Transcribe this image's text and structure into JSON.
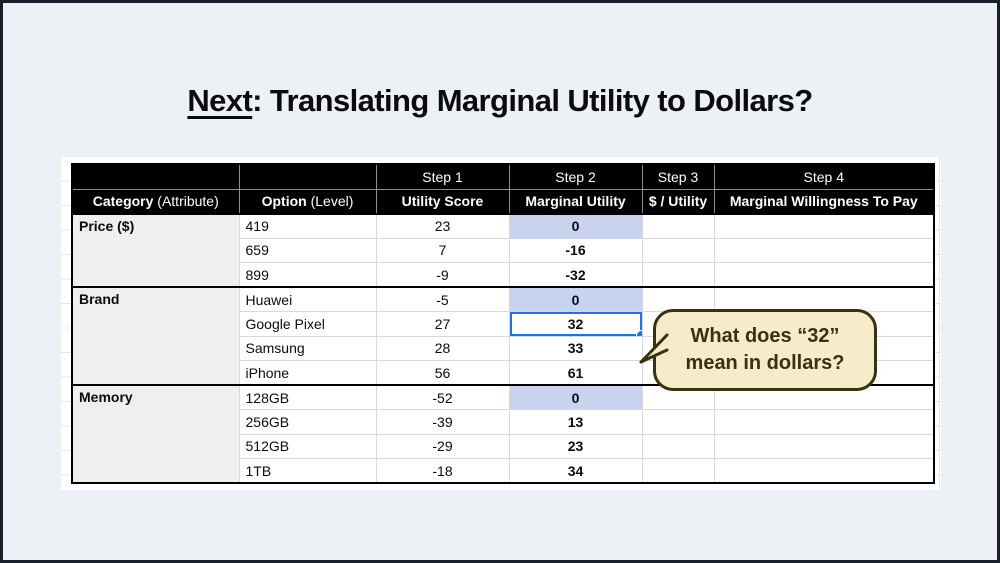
{
  "title": {
    "underlined": "Next",
    "rest": ": Translating Marginal Utility to Dollars?"
  },
  "table": {
    "step_row": [
      "",
      "",
      "Step 1",
      "Step 2",
      "Step 3",
      "Step 4"
    ],
    "header_row": [
      {
        "bold": "Category",
        "normal": " (Attribute)"
      },
      {
        "bold": "Option",
        "normal": " (Level)"
      },
      {
        "bold": "Utility Score",
        "normal": ""
      },
      {
        "bold": "Marginal Utility",
        "normal": ""
      },
      {
        "bold": "$ / Utility",
        "normal": ""
      },
      {
        "bold": "Marginal Willingness To Pay",
        "normal": ""
      }
    ],
    "rows": [
      {
        "category": "Price ($)",
        "span": 3,
        "group_start": true,
        "option": "419",
        "utility_score": "23",
        "marginal_utility": "0",
        "highlight": true
      },
      {
        "option": "659",
        "utility_score": "7",
        "marginal_utility": "-16"
      },
      {
        "option": "899",
        "utility_score": "-9",
        "marginal_utility": "-32"
      },
      {
        "category": "Brand",
        "span": 4,
        "group_start": true,
        "option": "Huawei",
        "utility_score": "-5",
        "marginal_utility": "0",
        "highlight": true
      },
      {
        "option": "Google Pixel",
        "utility_score": "27",
        "marginal_utility": "32",
        "selected": true
      },
      {
        "option": "Samsung",
        "utility_score": "28",
        "marginal_utility": "33"
      },
      {
        "option": "iPhone",
        "utility_score": "56",
        "marginal_utility": "61"
      },
      {
        "category": "Memory",
        "span": 4,
        "group_start": true,
        "option": "128GB",
        "utility_score": "-52",
        "marginal_utility": "0",
        "highlight": true
      },
      {
        "option": "256GB",
        "utility_score": "-39",
        "marginal_utility": "13"
      },
      {
        "option": "512GB",
        "utility_score": "-29",
        "marginal_utility": "23"
      },
      {
        "option": "1TB",
        "utility_score": "-18",
        "marginal_utility": "34"
      }
    ]
  },
  "callout": {
    "text": "What does “32” mean in dollars?"
  },
  "colors": {
    "slide_bg": "#edf1f6",
    "frame": "#16202d",
    "header_bg": "#000000",
    "category_bg": "#efefef",
    "highlight_lavender": "#c8d3f0",
    "selection_blue": "#1a73e8",
    "callout_fill": "#f7ecca",
    "callout_border": "#3a3110"
  }
}
